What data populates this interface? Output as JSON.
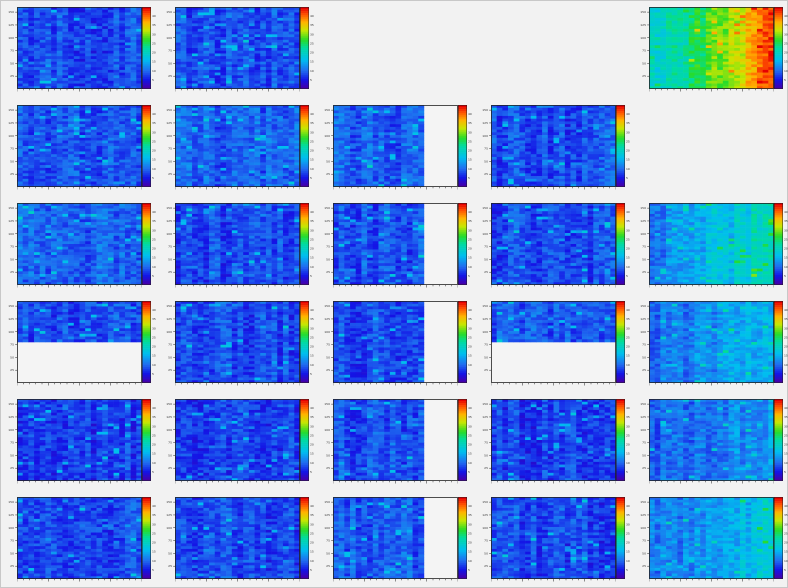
{
  "chart_data": {
    "type": "heatmap",
    "layout": {
      "rows": 6,
      "cols": 5
    },
    "y_tick_labels": [
      "25",
      "50",
      "75",
      "100",
      "125",
      "150"
    ],
    "ylim": [
      0,
      160
    ],
    "palette_ticks": [
      "5",
      "10",
      "15",
      "20",
      "25",
      "30",
      "35",
      "40"
    ],
    "palette": "rainbow (purple-blue-cyan-green-yellow-red)",
    "panels": [
      {
        "row": 0,
        "col": 0,
        "present": true,
        "mean_level": 0.17,
        "gradient": 0.0,
        "empty_x_from": null,
        "empty_y_below": null
      },
      {
        "row": 0,
        "col": 1,
        "present": true,
        "mean_level": 0.18,
        "gradient": 0.0,
        "empty_x_from": null,
        "empty_y_below": null
      },
      {
        "row": 0,
        "col": 2,
        "present": false
      },
      {
        "row": 0,
        "col": 3,
        "present": false
      },
      {
        "row": 0,
        "col": 4,
        "present": true,
        "mean_level": 0.42,
        "gradient": 0.5,
        "empty_x_from": null,
        "empty_y_below": null
      },
      {
        "row": 1,
        "col": 0,
        "present": true,
        "mean_level": 0.18,
        "gradient": 0.0,
        "empty_x_from": null,
        "empty_y_below": null
      },
      {
        "row": 1,
        "col": 1,
        "present": true,
        "mean_level": 0.2,
        "gradient": 0.0,
        "empty_x_from": null,
        "empty_y_below": null
      },
      {
        "row": 1,
        "col": 2,
        "present": true,
        "mean_level": 0.2,
        "gradient": 0.0,
        "empty_x_from": 0.76,
        "empty_y_below": null
      },
      {
        "row": 1,
        "col": 3,
        "present": true,
        "mean_level": 0.17,
        "gradient": 0.0,
        "empty_x_from": null,
        "empty_y_below": null
      },
      {
        "row": 1,
        "col": 4,
        "present": false
      },
      {
        "row": 2,
        "col": 0,
        "present": true,
        "mean_level": 0.2,
        "gradient": 0.0,
        "empty_x_from": null,
        "empty_y_below": null
      },
      {
        "row": 2,
        "col": 1,
        "present": true,
        "mean_level": 0.17,
        "gradient": 0.0,
        "empty_x_from": null,
        "empty_y_below": null
      },
      {
        "row": 2,
        "col": 2,
        "present": true,
        "mean_level": 0.18,
        "gradient": 0.0,
        "empty_x_from": 0.76,
        "empty_y_below": null
      },
      {
        "row": 2,
        "col": 3,
        "present": true,
        "mean_level": 0.17,
        "gradient": 0.0,
        "empty_x_from": null,
        "empty_y_below": null
      },
      {
        "row": 2,
        "col": 4,
        "present": true,
        "mean_level": 0.25,
        "gradient": 0.22,
        "empty_x_from": null,
        "empty_y_below": null
      },
      {
        "row": 3,
        "col": 0,
        "present": true,
        "mean_level": 0.18,
        "gradient": 0.0,
        "empty_x_from": null,
        "empty_y_below": 0.52
      },
      {
        "row": 3,
        "col": 1,
        "present": true,
        "mean_level": 0.17,
        "gradient": 0.0,
        "empty_x_from": null,
        "empty_y_below": null
      },
      {
        "row": 3,
        "col": 2,
        "present": true,
        "mean_level": 0.17,
        "gradient": 0.0,
        "empty_x_from": 0.76,
        "empty_y_below": null
      },
      {
        "row": 3,
        "col": 3,
        "present": true,
        "mean_level": 0.18,
        "gradient": 0.0,
        "empty_x_from": null,
        "empty_y_below": 0.52
      },
      {
        "row": 3,
        "col": 4,
        "present": true,
        "mean_level": 0.22,
        "gradient": 0.14,
        "empty_x_from": null,
        "empty_y_below": null
      },
      {
        "row": 4,
        "col": 0,
        "present": true,
        "mean_level": 0.15,
        "gradient": 0.0,
        "empty_x_from": null,
        "empty_y_below": null
      },
      {
        "row": 4,
        "col": 1,
        "present": true,
        "mean_level": 0.15,
        "gradient": 0.0,
        "empty_x_from": null,
        "empty_y_below": null
      },
      {
        "row": 4,
        "col": 2,
        "present": true,
        "mean_level": 0.18,
        "gradient": 0.0,
        "empty_x_from": 0.76,
        "empty_y_below": null
      },
      {
        "row": 4,
        "col": 3,
        "present": true,
        "mean_level": 0.16,
        "gradient": 0.0,
        "empty_x_from": null,
        "empty_y_below": null
      },
      {
        "row": 4,
        "col": 4,
        "present": true,
        "mean_level": 0.2,
        "gradient": 0.1,
        "empty_x_from": null,
        "empty_y_below": null
      },
      {
        "row": 5,
        "col": 0,
        "present": true,
        "mean_level": 0.17,
        "gradient": 0.0,
        "empty_x_from": null,
        "empty_y_below": null
      },
      {
        "row": 5,
        "col": 1,
        "present": true,
        "mean_level": 0.17,
        "gradient": 0.0,
        "empty_x_from": null,
        "empty_y_below": null
      },
      {
        "row": 5,
        "col": 2,
        "present": true,
        "mean_level": 0.19,
        "gradient": 0.0,
        "empty_x_from": 0.76,
        "empty_y_below": null
      },
      {
        "row": 5,
        "col": 3,
        "present": true,
        "mean_level": 0.16,
        "gradient": 0.0,
        "empty_x_from": null,
        "empty_y_below": null
      },
      {
        "row": 5,
        "col": 4,
        "present": true,
        "mean_level": 0.24,
        "gradient": 0.14,
        "empty_x_from": null,
        "empty_y_below": null
      }
    ]
  }
}
